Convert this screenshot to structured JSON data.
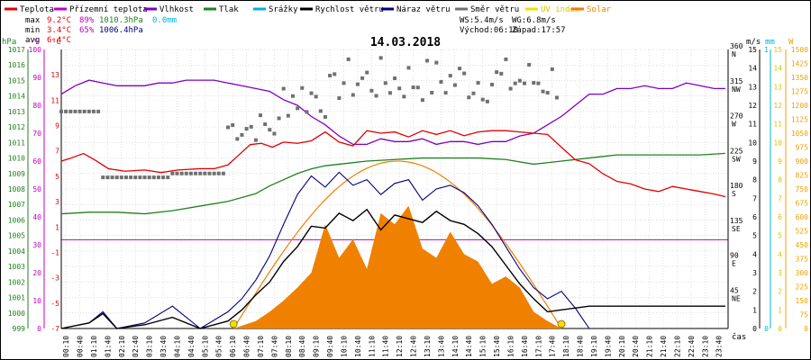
{
  "title": "14.03.2018",
  "legend": [
    {
      "label": "Teplota",
      "color": "#e00000"
    },
    {
      "label": "Přízemní teplota",
      "color": "#c000c0"
    },
    {
      "label": "Vlhkost",
      "color": "#8000c0"
    },
    {
      "label": "Tlak",
      "color": "#208020"
    },
    {
      "label": "Srážky",
      "color": "#00b0e0"
    },
    {
      "label": "Rychlost větru",
      "color": "#000000"
    },
    {
      "label": "Náraz větru",
      "color": "#000080"
    },
    {
      "label": "Směr větru",
      "color": "#707070"
    },
    {
      "label": "UV index",
      "color": "#f0e000"
    },
    {
      "label": "Solar",
      "color": "#f08000"
    }
  ],
  "stats": {
    "max": {
      "label": "max",
      "temp": "9.2°C",
      "hum": "89%",
      "press": "1010.3hPa",
      "rain": "0.0mm"
    },
    "min": {
      "label": "min",
      "temp": "3.4°C",
      "hum": "65%",
      "press": "1006.4hPa"
    },
    "avg": {
      "label": "avg",
      "temp": "6.4°C"
    }
  },
  "wind_info": {
    "ws": "WS:5.4m/s",
    "wg": "WG:6.8m/s",
    "sunrise": "Východ:06:10",
    "sunset": "Západ:17:57"
  },
  "axis_units": {
    "hpa": "hPa",
    "pct": "%",
    "degc": "°C",
    "ms": "m/s",
    "mm": "mm",
    "w": "W",
    "time": "čas"
  },
  "colors": {
    "temp": "#e00000",
    "groundtemp": "#c000c0",
    "hum": "#8000c0",
    "press": "#208020",
    "rain": "#00b0e0",
    "wind": "#000000",
    "gust": "#000080",
    "dir": "#707070",
    "uv": "#f0e000",
    "solar": "#f08000",
    "grid": "#c0c0c0",
    "zero": "#c000c0",
    "pressAxis": "#208020",
    "humAxis": "#c000c0",
    "tempAxis": "#e00000",
    "windAxis": "#000000",
    "rainAxis": "#00b0e0",
    "solarAxis": "#f0a000"
  },
  "chart_data": {
    "type": "line",
    "title": "14.03.2018",
    "xlabel": "čas",
    "x_ticks": [
      "00:10",
      "00:40",
      "01:10",
      "01:40",
      "02:10",
      "02:40",
      "03:10",
      "03:40",
      "04:10",
      "04:40",
      "05:10",
      "05:40",
      "06:10",
      "06:40",
      "07:10",
      "07:40",
      "08:10",
      "08:40",
      "09:10",
      "09:40",
      "10:10",
      "10:40",
      "11:10",
      "11:40",
      "12:10",
      "12:40",
      "13:10",
      "13:40",
      "14:10",
      "14:40",
      "15:10",
      "15:40",
      "16:10",
      "16:40",
      "17:10",
      "17:40",
      "18:10",
      "18:40",
      "19:10",
      "19:40",
      "20:10",
      "20:40",
      "21:10",
      "21:40",
      "22:10",
      "22:40",
      "23:10",
      "23:40"
    ],
    "axes": {
      "pressure_hPa": {
        "range": [
          999,
          1017
        ],
        "ticks": [
          999,
          1000,
          1001,
          1002,
          1003,
          1004,
          1005,
          1006,
          1007,
          1008,
          1009,
          1010,
          1011,
          1012,
          1013,
          1014,
          1015,
          1016,
          1017
        ]
      },
      "humidity_pct": {
        "range": [
          0,
          100
        ],
        "ticks": [
          0,
          10,
          20,
          30,
          40,
          50,
          60,
          70,
          80,
          90,
          100
        ]
      },
      "temperature_C": {
        "range": [
          -7,
          15
        ],
        "ticks": [
          -7,
          -5,
          -3,
          -1,
          1,
          3,
          5,
          7,
          9,
          11,
          13
        ]
      },
      "wind_dir": {
        "range": [
          0,
          360
        ],
        "ticks": [
          {
            "v": 45,
            "l": "NE"
          },
          {
            "v": 90,
            "l": "E"
          },
          {
            "v": 135,
            "l": "SE"
          },
          {
            "v": 180,
            "l": "S"
          },
          {
            "v": 225,
            "l": "SW"
          },
          {
            "v": 270,
            "l": "W"
          },
          {
            "v": 315,
            "l": "NW"
          },
          {
            "v": 360,
            "l": "N"
          }
        ]
      },
      "wind_ms": {
        "range": [
          0,
          15
        ],
        "ticks": [
          0,
          1,
          2,
          3,
          4,
          5,
          6,
          7,
          8,
          9,
          10,
          11,
          12,
          13,
          14,
          15
        ]
      },
      "rain_mm": {
        "range": [
          0,
          1
        ],
        "ticks": [
          0,
          1
        ]
      },
      "solar_W": {
        "range": [
          0,
          1500
        ],
        "ticks": [
          0,
          75,
          150,
          225,
          300,
          375,
          450,
          525,
          600,
          675,
          750,
          825,
          900,
          975,
          1050,
          1125,
          1200,
          1275,
          1350,
          1425,
          1500
        ]
      }
    },
    "series": [
      {
        "name": "Teplota",
        "axis": "temperature_C",
        "x": [
          0,
          0.3,
          0.8,
          1.2,
          1.7,
          2.3,
          3.0,
          3.6,
          4.2,
          5.0,
          5.5,
          6.0,
          6.4,
          6.8,
          7.2,
          7.6,
          8.0,
          8.5,
          9.0,
          9.5,
          10.0,
          10.5,
          11.0,
          11.5,
          12.0,
          12.5,
          13.0,
          13.5,
          14.0,
          14.5,
          15.0,
          15.5,
          16.0,
          16.5,
          17.0,
          17.5,
          18.0,
          18.5,
          19.0,
          19.5,
          20.0,
          20.5,
          21.0,
          21.5,
          22.0,
          22.5,
          23.0,
          23.5,
          23.9
        ],
        "y": [
          6.2,
          6.4,
          6.8,
          6.3,
          5.6,
          5.4,
          5.5,
          5.3,
          5.5,
          5.6,
          5.6,
          5.9,
          6.7,
          7.5,
          7.6,
          7.3,
          7.7,
          7.6,
          7.8,
          8.5,
          7.7,
          7.4,
          8.6,
          8.4,
          8.5,
          8.1,
          8.6,
          8.3,
          8.6,
          8.2,
          8.5,
          8.6,
          8.6,
          8.5,
          8.4,
          8.3,
          7.3,
          6.3,
          6.0,
          5.2,
          4.6,
          4.4,
          4.0,
          3.8,
          4.2,
          4.0,
          3.8,
          3.6,
          3.4
        ]
      },
      {
        "name": "Vlhkost",
        "axis": "humidity_pct",
        "x": [
          0,
          0.5,
          1.0,
          1.5,
          2.0,
          2.5,
          3.0,
          3.5,
          4.0,
          4.5,
          5.0,
          5.5,
          6.0,
          6.5,
          7.0,
          7.5,
          8.0,
          8.5,
          9.0,
          9.5,
          10.0,
          10.5,
          11.0,
          11.5,
          12.0,
          12.5,
          13.0,
          13.5,
          14.0,
          14.5,
          15.0,
          15.5,
          16.0,
          16.5,
          17.0,
          17.5,
          18.0,
          18.5,
          19.0,
          19.5,
          20.0,
          20.5,
          21.0,
          21.5,
          22.0,
          22.5,
          23.0,
          23.5,
          23.9
        ],
        "y": [
          84,
          87,
          89,
          88,
          87,
          87,
          87,
          88,
          88,
          89,
          89,
          89,
          88,
          87,
          86,
          85,
          82,
          80,
          76,
          73,
          69,
          66,
          66,
          68,
          67,
          67,
          68,
          66,
          67,
          67,
          66,
          67,
          67,
          69,
          70,
          73,
          76,
          80,
          84,
          84,
          86,
          86,
          87,
          86,
          86,
          88,
          87,
          86,
          86
        ]
      },
      {
        "name": "Tlak",
        "axis": "pressure_hPa",
        "x": [
          0,
          1,
          2,
          3,
          4,
          5,
          6,
          7,
          7.5,
          8,
          8.5,
          9,
          9.5,
          10,
          11,
          12,
          13,
          14,
          15,
          16,
          17,
          17.5,
          18,
          18.5,
          19,
          19.5,
          20,
          21,
          22,
          23,
          23.9
        ],
        "y": [
          1006.4,
          1006.5,
          1006.5,
          1006.4,
          1006.6,
          1006.9,
          1007.2,
          1007.7,
          1008.2,
          1008.6,
          1009.0,
          1009.3,
          1009.5,
          1009.6,
          1009.8,
          1009.9,
          1010.0,
          1010.0,
          1010.0,
          1009.9,
          1009.6,
          1009.7,
          1009.8,
          1009.9,
          1010.0,
          1010.1,
          1010.2,
          1010.2,
          1010.2,
          1010.2,
          1010.3
        ]
      },
      {
        "name": "Rychlost větru",
        "axis": "wind_ms",
        "x": [
          0,
          1,
          1.5,
          2,
          3,
          4,
          5,
          6,
          6.5,
          7,
          7.5,
          8,
          8.5,
          9,
          9.5,
          10,
          10.5,
          11,
          11.5,
          12,
          12.5,
          13,
          13.5,
          14,
          14.5,
          15,
          15.5,
          16,
          16.5,
          17,
          17.5,
          18,
          18.5,
          19,
          20,
          21,
          22,
          23,
          23.9
        ],
        "y": [
          0,
          0.3,
          0.8,
          0,
          0.2,
          0.6,
          0,
          0.4,
          1.0,
          1.8,
          2.5,
          3.6,
          4.4,
          5.5,
          5.4,
          6.2,
          5.8,
          6.4,
          5.3,
          6.1,
          5.9,
          5.7,
          6.3,
          5.8,
          5.6,
          5.1,
          4.4,
          3.4,
          2.4,
          1.6,
          0.9,
          1.0,
          1.1,
          1.2,
          1.2,
          1.2,
          1.2,
          1.2,
          1.2
        ]
      },
      {
        "name": "Náraz větru",
        "axis": "wind_ms",
        "x": [
          0,
          1,
          1.5,
          2,
          3,
          4,
          5,
          6,
          6.5,
          7,
          7.5,
          8,
          8.5,
          9,
          9.5,
          10,
          10.5,
          11,
          11.5,
          12,
          12.5,
          13,
          13.5,
          14,
          14.5,
          15,
          15.5,
          16,
          16.5,
          17,
          17.5,
          18,
          18.5,
          19
        ],
        "y": [
          0,
          0.3,
          0.9,
          0,
          0.3,
          1.2,
          0,
          0.9,
          1.6,
          2.6,
          3.9,
          5.6,
          7.2,
          8.2,
          7.6,
          8.4,
          7.7,
          8.0,
          7.2,
          7.8,
          8.0,
          6.9,
          7.5,
          7.7,
          7.3,
          6.6,
          5.6,
          4.4,
          3.2,
          2.2,
          1.6,
          2.0,
          1.1,
          0
        ]
      },
      {
        "name": "Solar",
        "axis": "solar_W",
        "x": [
          6.2,
          7,
          7.5,
          8,
          8.5,
          9,
          9.5,
          10,
          10.5,
          11,
          11.5,
          12,
          12.5,
          13,
          13.5,
          14,
          14.5,
          15,
          15.5,
          16,
          16.5,
          17,
          17.5,
          18
        ],
        "y": [
          0,
          40,
          90,
          150,
          220,
          300,
          560,
          380,
          480,
          320,
          620,
          560,
          660,
          430,
          380,
          520,
          400,
          360,
          240,
          280,
          220,
          90,
          40,
          0
        ]
      },
      {
        "name": "UV index",
        "axis": "wind_ms",
        "x": [
          6.2,
          18
        ],
        "y": [
          0.3,
          0.3
        ]
      }
    ]
  }
}
